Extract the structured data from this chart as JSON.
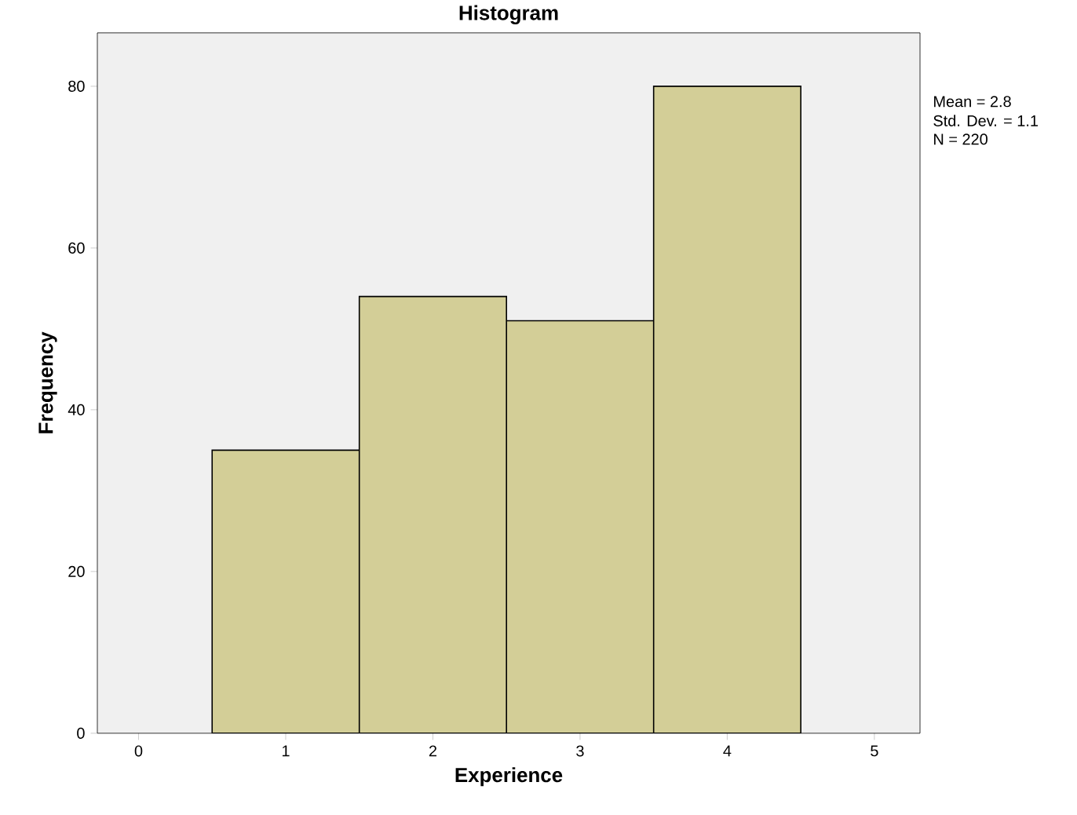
{
  "chart_data": {
    "type": "histogram",
    "title": "Histogram",
    "xlabel": "Experience",
    "ylabel": "Frequency",
    "bins": [
      0.5,
      1.5,
      2.5,
      3.5,
      4.5
    ],
    "values": [
      35,
      54,
      51,
      80
    ],
    "color": "#d3ce97",
    "xlim": [
      -0.28,
      5.31
    ],
    "xticks": [
      0,
      1,
      2,
      3,
      4,
      5
    ],
    "ylim": [
      0,
      86.6
    ],
    "yticks": [
      0,
      20,
      40,
      60,
      80
    ],
    "grid": false,
    "annotations": [
      "Mean = 2.8",
      "Std. Dev. = 1.1",
      "N = 220"
    ]
  }
}
